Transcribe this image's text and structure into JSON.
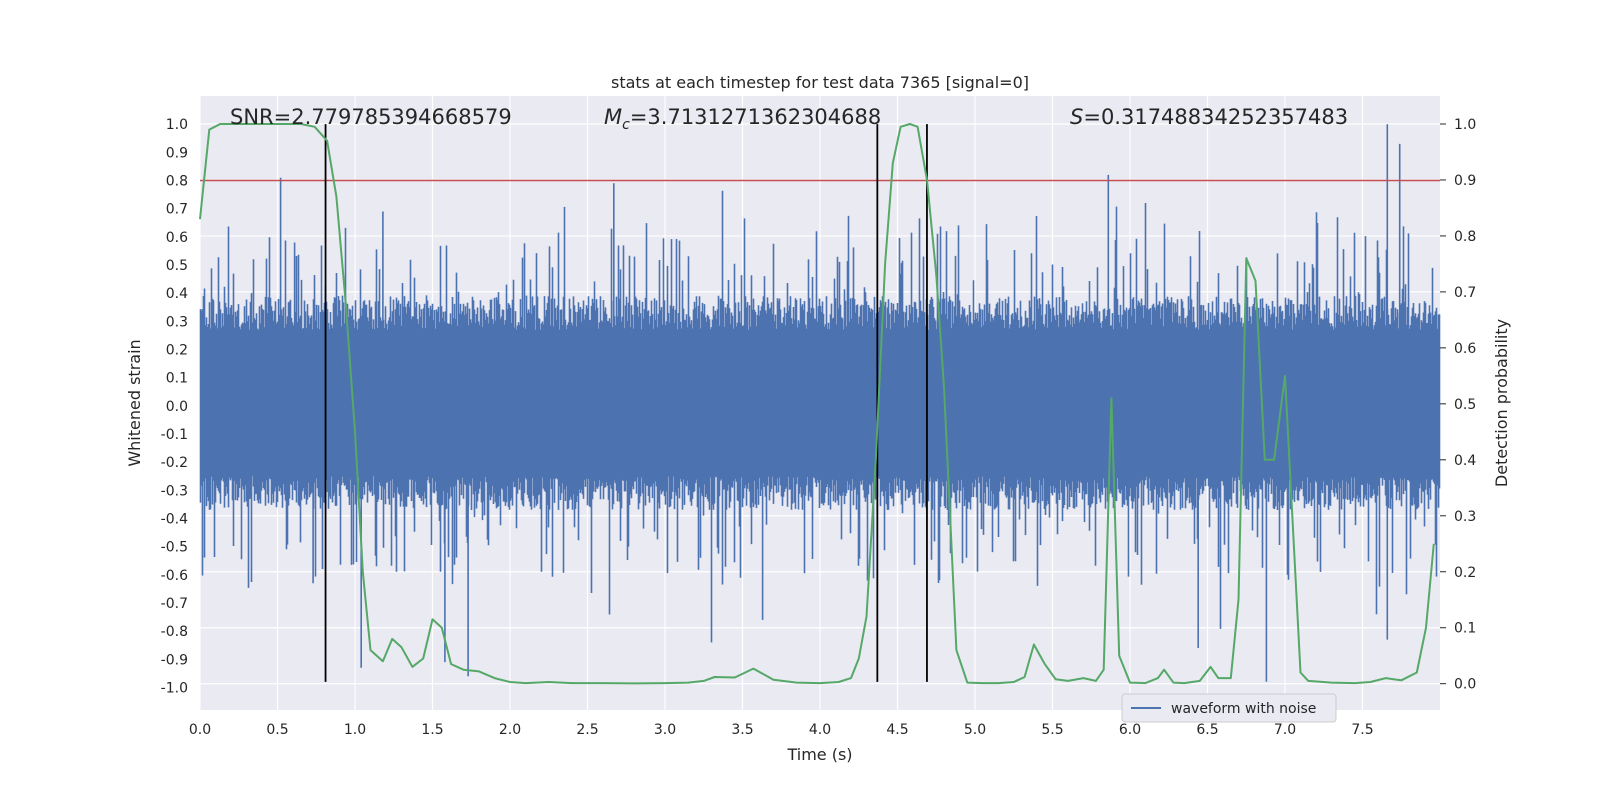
{
  "chart_data": {
    "type": "line",
    "title": "stats at each timestep for test data 7365 [signal=0]",
    "xlabel": "Time (s)",
    "ylabel_left": "Whitened strain",
    "ylabel_right": "Detection probability",
    "xlim": [
      0.0,
      8.0
    ],
    "ylim_left": [
      -1.08,
      1.1
    ],
    "ylim_right": [
      -0.047,
      1.05
    ],
    "x_ticks": [
      "0.0",
      "0.5",
      "1.0",
      "1.5",
      "2.0",
      "2.5",
      "3.0",
      "3.5",
      "4.0",
      "4.5",
      "5.0",
      "5.5",
      "6.0",
      "6.5",
      "7.0",
      "7.5"
    ],
    "y_ticks_left": [
      "1.0",
      "0.9",
      "0.8",
      "0.7",
      "0.6",
      "0.5",
      "0.4",
      "0.3",
      "0.2",
      "0.1",
      "0.0",
      "-0.1",
      "-0.2",
      "-0.3",
      "-0.4",
      "-0.5",
      "-0.6",
      "-0.7",
      "-0.8",
      "-0.9",
      "-1.0"
    ],
    "y_ticks_right": [
      "1.0",
      "0.9",
      "0.8",
      "0.7",
      "0.6",
      "0.5",
      "0.4",
      "0.3",
      "0.2",
      "0.1",
      "0.0"
    ],
    "annotations": {
      "snr": "SNR=2.779785394668579",
      "mc_symbol": "M",
      "mc_sub": "c",
      "mc_value": "=3.7131271362304688",
      "s_symbol": "S",
      "s_value": "=0.31748834252357483"
    },
    "threshold_left": 0.8,
    "vertical_lines_x": [
      0.81,
      4.37,
      4.69
    ],
    "vertical_lines_yrange": [
      -0.98,
      1.0
    ],
    "legend": [
      {
        "label": "waveform with noise",
        "color": "#4c72b0"
      }
    ],
    "series": [
      {
        "name": "waveform with noise",
        "color": "#4c72b0",
        "axis": "left",
        "kind": "noise",
        "band_upper": 0.27,
        "band_lower": -0.25,
        "peaks": [
          {
            "x": 0.52,
            "y": 0.81
          },
          {
            "x": 0.61,
            "y": 0.58
          },
          {
            "x": 0.73,
            "y": -0.63
          },
          {
            "x": 1.04,
            "y": -0.93
          },
          {
            "x": 1.18,
            "y": 0.69
          },
          {
            "x": 1.58,
            "y": -0.91
          },
          {
            "x": 1.73,
            "y": -0.96
          },
          {
            "x": 2.67,
            "y": 0.79
          },
          {
            "x": 3.3,
            "y": -0.84
          },
          {
            "x": 3.63,
            "y": -0.76
          },
          {
            "x": 5.86,
            "y": 0.82
          },
          {
            "x": 6.1,
            "y": 0.72
          },
          {
            "x": 6.44,
            "y": -0.86
          },
          {
            "x": 6.88,
            "y": -0.98
          },
          {
            "x": 7.66,
            "y": 1.0
          },
          {
            "x": 7.66,
            "y": -0.83
          },
          {
            "x": 7.74,
            "y": 0.93
          },
          {
            "x": 7.59,
            "y": -0.74
          }
        ]
      },
      {
        "name": "detection probability",
        "color": "#55a868",
        "axis": "right",
        "points": [
          [
            0.0,
            0.83
          ],
          [
            0.06,
            0.99
          ],
          [
            0.13,
            1.0
          ],
          [
            0.3,
            1.0
          ],
          [
            0.5,
            1.0
          ],
          [
            0.65,
            1.0
          ],
          [
            0.74,
            0.995
          ],
          [
            0.82,
            0.97
          ],
          [
            0.88,
            0.87
          ],
          [
            0.94,
            0.68
          ],
          [
            1.0,
            0.45
          ],
          [
            1.05,
            0.2
          ],
          [
            1.1,
            0.06
          ],
          [
            1.18,
            0.04
          ],
          [
            1.24,
            0.08
          ],
          [
            1.3,
            0.065
          ],
          [
            1.37,
            0.03
          ],
          [
            1.44,
            0.045
          ],
          [
            1.5,
            0.115
          ],
          [
            1.56,
            0.1
          ],
          [
            1.62,
            0.035
          ],
          [
            1.7,
            0.025
          ],
          [
            1.8,
            0.022
          ],
          [
            1.9,
            0.01
          ],
          [
            2.0,
            0.003
          ],
          [
            2.1,
            0.001
          ],
          [
            2.25,
            0.003
          ],
          [
            2.4,
            0.001
          ],
          [
            2.6,
            0.001
          ],
          [
            2.8,
            0.0005
          ],
          [
            3.0,
            0.001
          ],
          [
            3.15,
            0.002
          ],
          [
            3.25,
            0.005
          ],
          [
            3.32,
            0.012
          ],
          [
            3.45,
            0.011
          ],
          [
            3.57,
            0.027
          ],
          [
            3.7,
            0.007
          ],
          [
            3.85,
            0.002
          ],
          [
            4.0,
            0.001
          ],
          [
            4.12,
            0.003
          ],
          [
            4.2,
            0.01
          ],
          [
            4.25,
            0.045
          ],
          [
            4.3,
            0.12
          ],
          [
            4.36,
            0.4
          ],
          [
            4.42,
            0.75
          ],
          [
            4.47,
            0.93
          ],
          [
            4.52,
            0.995
          ],
          [
            4.58,
            1.0
          ],
          [
            4.63,
            0.995
          ],
          [
            4.69,
            0.9
          ],
          [
            4.75,
            0.73
          ],
          [
            4.8,
            0.53
          ],
          [
            4.88,
            0.06
          ],
          [
            4.95,
            0.002
          ],
          [
            5.05,
            0.001
          ],
          [
            5.15,
            0.001
          ],
          [
            5.25,
            0.003
          ],
          [
            5.32,
            0.012
          ],
          [
            5.38,
            0.07
          ],
          [
            5.45,
            0.035
          ],
          [
            5.52,
            0.008
          ],
          [
            5.6,
            0.005
          ],
          [
            5.7,
            0.01
          ],
          [
            5.78,
            0.005
          ],
          [
            5.83,
            0.025
          ],
          [
            5.88,
            0.51
          ],
          [
            5.93,
            0.05
          ],
          [
            6.0,
            0.002
          ],
          [
            6.1,
            0.001
          ],
          [
            6.18,
            0.01
          ],
          [
            6.22,
            0.025
          ],
          [
            6.28,
            0.002
          ],
          [
            6.35,
            0.001
          ],
          [
            6.45,
            0.005
          ],
          [
            6.52,
            0.03
          ],
          [
            6.57,
            0.01
          ],
          [
            6.65,
            0.01
          ],
          [
            6.7,
            0.15
          ],
          [
            6.75,
            0.76
          ],
          [
            6.81,
            0.72
          ],
          [
            6.87,
            0.4
          ],
          [
            6.93,
            0.4
          ],
          [
            7.0,
            0.55
          ],
          [
            7.1,
            0.02
          ],
          [
            7.15,
            0.005
          ],
          [
            7.3,
            0.002
          ],
          [
            7.45,
            0.001
          ],
          [
            7.55,
            0.003
          ],
          [
            7.65,
            0.01
          ],
          [
            7.75,
            0.006
          ],
          [
            7.85,
            0.02
          ],
          [
            7.91,
            0.1
          ],
          [
            7.96,
            0.25
          ]
        ]
      }
    ]
  }
}
